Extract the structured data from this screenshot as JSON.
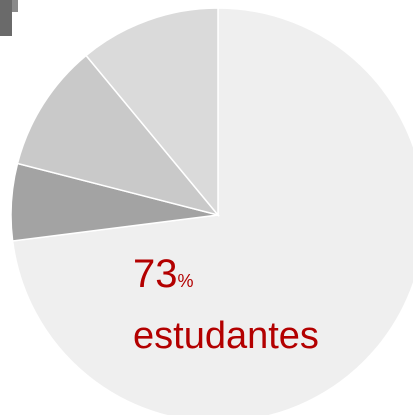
{
  "chart_data": {
    "type": "pie",
    "categories": [
      "estudantes",
      null,
      null,
      null
    ],
    "values": [
      73,
      6,
      10,
      11
    ],
    "value_labels": [
      "73%",
      null,
      null,
      null
    ],
    "colors": [
      "#efefef",
      "#a3a3a3",
      "#c9c9c9",
      "#dadada"
    ],
    "label_color": "#b30000"
  }
}
